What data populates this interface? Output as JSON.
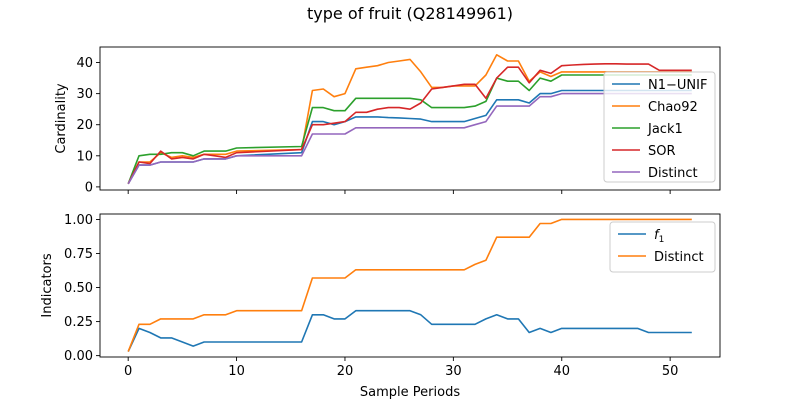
{
  "chart_data": {
    "title": "type of fruit (Q28149961)",
    "xlabel": "Sample Periods",
    "panels": [
      {
        "type": "line",
        "ylabel": "Cardinality",
        "xlim": [
          -2.6,
          54.6
        ],
        "ylim": [
          -1,
          45
        ],
        "xticks": [
          0,
          10,
          20,
          30,
          40,
          50
        ],
        "yticks": [
          0,
          10,
          20,
          30,
          40
        ],
        "legend_position": "right",
        "grid": false,
        "series": [
          {
            "name": "N1−UNIF",
            "color": "#1f77b4",
            "x": [
              0,
              1,
              2,
              3,
              4,
              5,
              6,
              7,
              8,
              9,
              10,
              16,
              17,
              18,
              19,
              20,
              21,
              22,
              23,
              24,
              25,
              26,
              27,
              28,
              29,
              30,
              31,
              32,
              33,
              34,
              35,
              36,
              37,
              38,
              39,
              40,
              52
            ],
            "y": [
              1,
              7,
              7,
              8,
              8,
              8,
              8,
              9,
              9,
              9,
              10,
              11,
              21,
              21,
              20,
              21,
              22.5,
              22.5,
              22.5,
              22.3,
              22.2,
              22,
              21.8,
              21,
              21,
              21,
              21,
              22,
              23,
              28,
              28,
              28,
              27,
              30,
              30,
              31,
              31
            ]
          },
          {
            "name": "Chao92",
            "color": "#ff7f0e",
            "x": [
              0,
              1,
              2,
              3,
              4,
              5,
              6,
              7,
              8,
              9,
              10,
              16,
              17,
              18,
              19,
              20,
              21,
              22,
              23,
              24,
              25,
              26,
              27,
              28,
              29,
              30,
              31,
              32,
              33,
              34,
              35,
              36,
              37,
              38,
              39,
              40,
              52
            ],
            "y": [
              1,
              8,
              8,
              11,
              9.5,
              10,
              9.5,
              10.5,
              10.5,
              10.5,
              11.5,
              12,
              31,
              31.5,
              29,
              30,
              38,
              38.5,
              39,
              40,
              40.5,
              41,
              37,
              32,
              32,
              32.5,
              32.5,
              32.5,
              36,
              42.5,
              40.5,
              40.5,
              34,
              37,
              35.5,
              37,
              37
            ]
          },
          {
            "name": "Jack1",
            "color": "#2ca02c",
            "x": [
              0,
              1,
              2,
              3,
              4,
              5,
              6,
              7,
              8,
              9,
              10,
              16,
              17,
              18,
              19,
              20,
              21,
              22,
              23,
              24,
              25,
              26,
              27,
              28,
              29,
              30,
              31,
              32,
              33,
              34,
              35,
              36,
              37,
              38,
              39,
              40,
              52
            ],
            "y": [
              1,
              10,
              10.5,
              10.5,
              11,
              11,
              10,
              11.5,
              11.5,
              11.5,
              12.5,
              13,
              25.5,
              25.5,
              24.5,
              24.5,
              28.5,
              28.5,
              28.5,
              28.5,
              28.5,
              28.5,
              28,
              25.5,
              25.5,
              25.5,
              25.5,
              26,
              27.5,
              35,
              34,
              34,
              31,
              35,
              34,
              36,
              36
            ]
          },
          {
            "name": "SOR",
            "color": "#d62728",
            "x": [
              0,
              1,
              2,
              3,
              4,
              5,
              6,
              7,
              8,
              9,
              10,
              16,
              17,
              18,
              19,
              20,
              21,
              22,
              23,
              24,
              25,
              26,
              27,
              28,
              29,
              30,
              31,
              32,
              33,
              34,
              35,
              36,
              37,
              38,
              39,
              40,
              41,
              42,
              43,
              44,
              45,
              46,
              47,
              48,
              49,
              50,
              51,
              52
            ],
            "y": [
              1,
              8,
              7.5,
              11.5,
              9,
              9.5,
              9,
              10.5,
              10,
              9.5,
              11,
              12,
              20,
              20,
              20.5,
              21,
              24,
              24,
              25,
              25.5,
              25.5,
              25,
              27,
              31.5,
              32,
              32.5,
              33,
              33,
              28.5,
              35,
              38.5,
              38.5,
              33.5,
              37.5,
              36.5,
              39,
              39.2,
              39.4,
              39.5,
              39.6,
              39.6,
              39.5,
              39.5,
              39.5,
              37.5,
              37.5,
              37.5,
              37.5
            ]
          },
          {
            "name": "Distinct",
            "color": "#9467bd",
            "x": [
              0,
              1,
              2,
              3,
              4,
              5,
              6,
              7,
              8,
              9,
              10,
              16,
              17,
              18,
              19,
              20,
              21,
              22,
              23,
              24,
              25,
              26,
              27,
              28,
              29,
              30,
              31,
              32,
              33,
              34,
              35,
              36,
              37,
              38,
              39,
              40,
              52
            ],
            "y": [
              1,
              7,
              7,
              8,
              8,
              8,
              8,
              9,
              9,
              9,
              10,
              10,
              17,
              17,
              17,
              17,
              19,
              19,
              19,
              19,
              19,
              19,
              19,
              19,
              19,
              19,
              19,
              20,
              21,
              26,
              26,
              26,
              26,
              29,
              29,
              30,
              30
            ]
          }
        ]
      },
      {
        "type": "line",
        "ylabel": "Indicators",
        "xlim": [
          -2.6,
          54.6
        ],
        "ylim": [
          -0.01,
          1.04
        ],
        "xticks": [
          0,
          10,
          20,
          30,
          40,
          50
        ],
        "yticks": [
          0.0,
          0.25,
          0.5,
          0.75,
          1.0
        ],
        "ytick_labels": [
          "0.00",
          "0.25",
          "0.50",
          "0.75",
          "1.00"
        ],
        "legend_position": "top-right",
        "grid": false,
        "series": [
          {
            "name": "f",
            "name_subscript": "1",
            "color": "#1f77b4",
            "x": [
              0,
              1,
              2,
              3,
              4,
              5,
              6,
              7,
              8,
              9,
              10,
              11,
              12,
              13,
              14,
              15,
              16,
              17,
              18,
              19,
              20,
              21,
              22,
              23,
              24,
              25,
              26,
              27,
              28,
              29,
              30,
              31,
              32,
              33,
              34,
              35,
              36,
              37,
              38,
              39,
              40,
              41,
              42,
              43,
              44,
              45,
              46,
              47,
              48,
              49,
              50,
              51,
              52
            ],
            "y": [
              0.03,
              0.2,
              0.17,
              0.13,
              0.13,
              0.1,
              0.07,
              0.1,
              0.1,
              0.1,
              0.1,
              0.1,
              0.1,
              0.1,
              0.1,
              0.1,
              0.1,
              0.3,
              0.3,
              0.27,
              0.27,
              0.33,
              0.33,
              0.33,
              0.33,
              0.33,
              0.33,
              0.3,
              0.23,
              0.23,
              0.23,
              0.23,
              0.23,
              0.27,
              0.3,
              0.27,
              0.27,
              0.17,
              0.2,
              0.17,
              0.2,
              0.2,
              0.2,
              0.2,
              0.2,
              0.2,
              0.2,
              0.2,
              0.17,
              0.17,
              0.17,
              0.17,
              0.17
            ]
          },
          {
            "name": "Distinct",
            "color": "#ff7f0e",
            "x": [
              0,
              1,
              2,
              3,
              4,
              5,
              6,
              7,
              8,
              9,
              10,
              11,
              12,
              13,
              14,
              15,
              16,
              17,
              18,
              19,
              20,
              21,
              22,
              23,
              24,
              25,
              26,
              27,
              28,
              29,
              30,
              31,
              32,
              33,
              34,
              35,
              36,
              37,
              38,
              39,
              40,
              41,
              42,
              43,
              44,
              45,
              46,
              47,
              48,
              49,
              50,
              51,
              52
            ],
            "y": [
              0.03,
              0.23,
              0.23,
              0.27,
              0.27,
              0.27,
              0.27,
              0.3,
              0.3,
              0.3,
              0.33,
              0.33,
              0.33,
              0.33,
              0.33,
              0.33,
              0.33,
              0.57,
              0.57,
              0.57,
              0.57,
              0.63,
              0.63,
              0.63,
              0.63,
              0.63,
              0.63,
              0.63,
              0.63,
              0.63,
              0.63,
              0.63,
              0.67,
              0.7,
              0.87,
              0.87,
              0.87,
              0.87,
              0.97,
              0.97,
              1.0,
              1.0,
              1.0,
              1.0,
              1.0,
              1.0,
              1.0,
              1.0,
              1.0,
              1.0,
              1.0,
              1.0,
              1.0
            ]
          }
        ]
      }
    ]
  }
}
